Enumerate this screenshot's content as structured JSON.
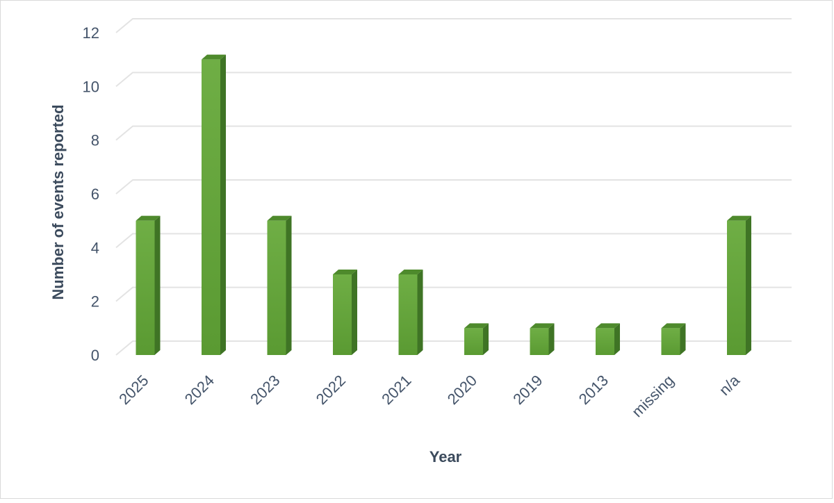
{
  "chart_data": {
    "type": "bar",
    "categories": [
      "2025",
      "2024",
      "2023",
      "2022",
      "2021",
      "2020",
      "2019",
      "2013",
      "missing",
      "n/a"
    ],
    "values": [
      5,
      11,
      5,
      3,
      3,
      1,
      1,
      1,
      1,
      5
    ],
    "title": "",
    "xlabel": "Year",
    "ylabel": "Number of events reported",
    "ylim": [
      0,
      12
    ],
    "yticks": [
      0,
      2,
      4,
      6,
      8,
      10,
      12
    ],
    "grid": true,
    "legend": "none",
    "bar_style": "3d-column",
    "colors": {
      "bar_front": "#5a9a32",
      "bar_front_light": "#6fae45",
      "bar_side": "#3f7425",
      "bar_top": "#4e8a2c",
      "grid": "#e3e3e3",
      "tick_text": "#44546a",
      "axis_title": "#3b4a5c"
    }
  }
}
